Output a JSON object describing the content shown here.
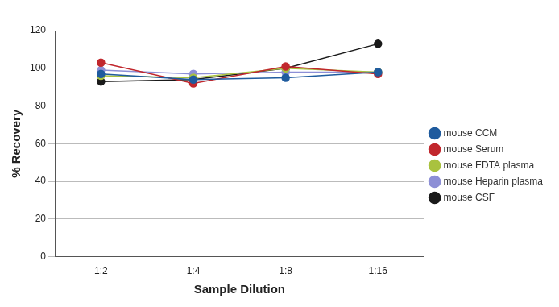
{
  "chart_data": {
    "type": "line",
    "x_label": "Sample Dilution",
    "y_label": "% Recovery",
    "categories": [
      "1:2",
      "1:4",
      "1:8",
      "1:16"
    ],
    "series": [
      {
        "name": "mouse CCM",
        "color": "#1f5b9e",
        "values": [
          97,
          94,
          95,
          98
        ]
      },
      {
        "name": "mouse Serum",
        "color": "#c1272d",
        "values": [
          103,
          92,
          101,
          97
        ]
      },
      {
        "name": "mouse EDTA plasma",
        "color": "#a9c23f",
        "values": [
          96,
          95,
          100,
          98
        ]
      },
      {
        "name": "mouse Heparin plasma",
        "color": "#8d8fd6",
        "values": [
          99,
          97,
          98,
          98
        ]
      },
      {
        "name": "mouse CSF",
        "color": "#1a1a1a",
        "values": [
          93,
          94,
          100,
          113
        ]
      }
    ],
    "ylim": [
      0,
      120
    ],
    "yticks": [
      0,
      20,
      40,
      60,
      80,
      100,
      120
    ],
    "grid": true,
    "legend": "right",
    "marker": "circle"
  }
}
